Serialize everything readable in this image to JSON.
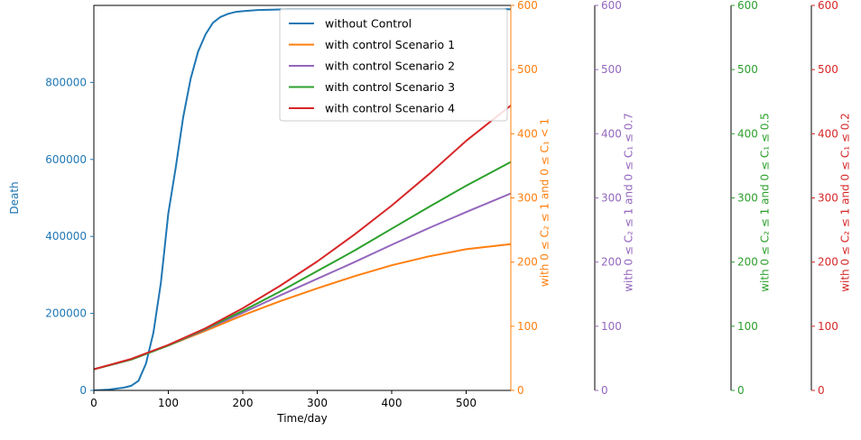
{
  "chart_data": {
    "type": "line",
    "xlabel": "Time/day",
    "xlim": [
      0,
      560
    ],
    "x_ticks": [
      0,
      100,
      200,
      300,
      400,
      500
    ],
    "left_axis": {
      "label": "Death",
      "color": "#1f77b4",
      "ylim": [
        0,
        1000000
      ],
      "ticks": [
        0,
        200000,
        400000,
        600000,
        800000
      ]
    },
    "right_axes": [
      {
        "label": "with  0 ≤ C₂ ≤ 1 and 0 ≤ C₁ < 1",
        "color": "#ff7f0e",
        "ylim": [
          0,
          600
        ],
        "ticks": [
          0,
          100,
          200,
          300,
          400,
          500,
          600
        ]
      },
      {
        "label": "with 0 ≤ C₂ ≤ 1 and 0 ≤ C₁ ≤ 0.7",
        "color": "#9467bd",
        "ylim": [
          0,
          600
        ],
        "ticks": [
          0,
          100,
          200,
          300,
          400,
          500,
          600
        ]
      },
      {
        "label": "with 0 ≤ C₂ ≤ 1 and 0 ≤ C₁ ≤ 0.5",
        "color": "#2ca02c",
        "ylim": [
          0,
          600
        ],
        "ticks": [
          0,
          100,
          200,
          300,
          400,
          500,
          600
        ]
      },
      {
        "label": "with 0 ≤ C₂ ≤ 1 and 0 ≤ C₁ ≤ 0.2",
        "color": "#d62728",
        "ylim": [
          0,
          600
        ],
        "ticks": [
          0,
          100,
          200,
          300,
          400,
          500,
          600
        ]
      }
    ],
    "legend": {
      "placement": "top-right"
    },
    "series": [
      {
        "name": "without Control",
        "color": "#1f77b4",
        "axis": "left",
        "x": [
          0,
          20,
          40,
          50,
          60,
          70,
          80,
          90,
          100,
          110,
          120,
          130,
          140,
          150,
          160,
          170,
          180,
          190,
          200,
          220,
          240,
          260,
          300,
          400,
          500,
          560
        ],
        "y": [
          0,
          2000,
          7000,
          12000,
          25000,
          70000,
          150000,
          280000,
          460000,
          580000,
          710000,
          810000,
          880000,
          925000,
          955000,
          970000,
          978000,
          983000,
          985000,
          988000,
          989000,
          990000,
          990000,
          990000,
          990000,
          990000
        ]
      },
      {
        "name": "with control Scenario 1",
        "color": "#ff7f0e",
        "axis": "right1",
        "x": [
          0,
          50,
          100,
          150,
          200,
          250,
          300,
          350,
          400,
          450,
          500,
          560
        ],
        "y": [
          33,
          48,
          70,
          93,
          117,
          139,
          159,
          178,
          195,
          209,
          220,
          228
        ]
      },
      {
        "name": "with control Scenario 2",
        "color": "#9467bd",
        "axis": "right2",
        "x": [
          0,
          50,
          100,
          150,
          200,
          250,
          300,
          350,
          400,
          450,
          500,
          560
        ],
        "y": [
          33,
          48,
          70,
          95,
          121,
          148,
          174,
          200,
          227,
          253,
          278,
          307
        ]
      },
      {
        "name": "with control Scenario 3",
        "color": "#2ca02c",
        "axis": "right3",
        "x": [
          0,
          50,
          100,
          150,
          200,
          250,
          300,
          350,
          400,
          450,
          500,
          560
        ],
        "y": [
          33,
          48,
          70,
          96,
          124,
          154,
          186,
          218,
          252,
          286,
          319,
          356
        ]
      },
      {
        "name": "with control Scenario 4",
        "color": "#d62728",
        "axis": "right4",
        "x": [
          0,
          50,
          100,
          150,
          200,
          250,
          300,
          350,
          400,
          450,
          500,
          560
        ],
        "y": [
          33,
          49,
          71,
          97,
          128,
          163,
          201,
          243,
          288,
          337,
          389,
          444
        ]
      }
    ]
  }
}
